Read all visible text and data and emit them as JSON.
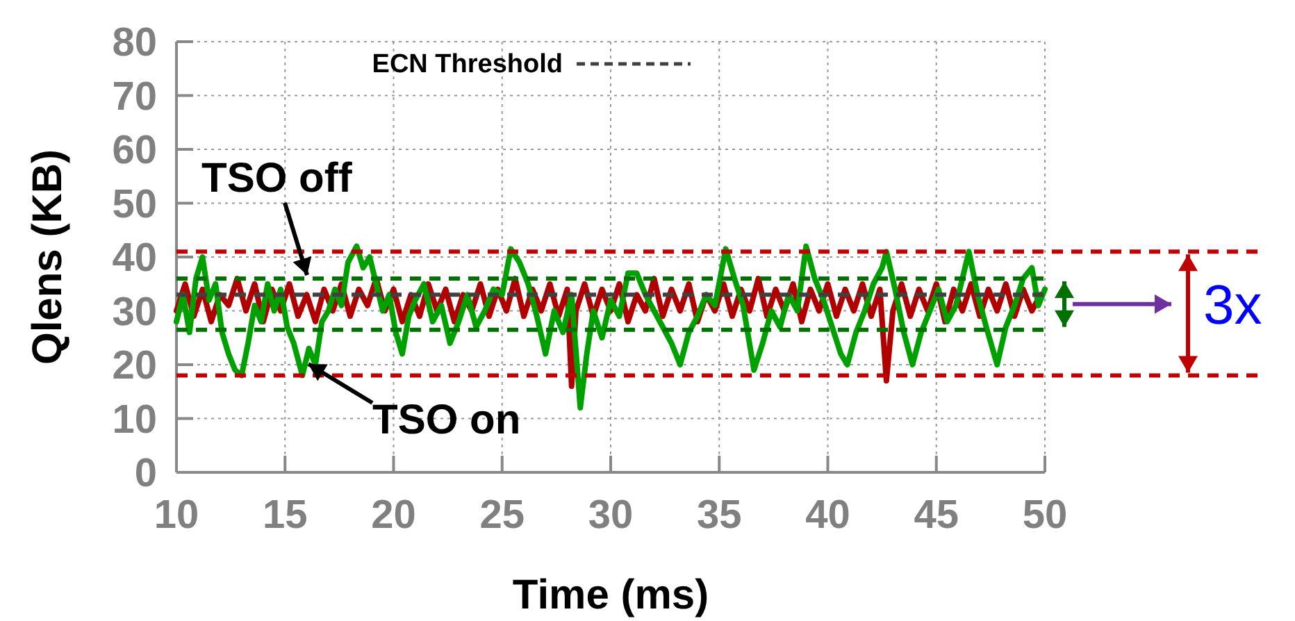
{
  "chart_data": {
    "type": "line",
    "xlabel": "Time (ms)",
    "ylabel": "Qlens (KB)",
    "xlim": [
      10,
      50
    ],
    "xticks": [
      10,
      15,
      20,
      25,
      30,
      35,
      40,
      45,
      50
    ],
    "ylim": [
      0,
      80
    ],
    "yticks": [
      0,
      10,
      20,
      30,
      40,
      50,
      60,
      70,
      80
    ],
    "grid": true,
    "legend": "top",
    "line_style": "solid",
    "marker": "none",
    "series": [
      {
        "name": "TSO off",
        "color": "#b00000",
        "x": [
          10,
          10.4,
          10.8,
          11.2,
          11.6,
          12,
          12.4,
          12.8,
          13.2,
          13.6,
          14,
          14.4,
          14.8,
          15.2,
          15.6,
          16,
          16.4,
          16.8,
          17.2,
          17.6,
          18,
          18.4,
          18.8,
          19.2,
          19.6,
          20,
          20.4,
          20.8,
          21.2,
          21.6,
          22,
          22.4,
          22.8,
          23.2,
          23.6,
          24,
          24.4,
          24.8,
          25.2,
          25.6,
          26,
          26.4,
          26.8,
          27.2,
          27.6,
          28,
          28.2,
          28.4,
          28.8,
          29.2,
          29.6,
          30,
          30.4,
          30.8,
          31.2,
          31.6,
          32,
          32.4,
          32.8,
          33.2,
          33.6,
          34,
          34.4,
          34.8,
          35.2,
          35.6,
          36,
          36.4,
          36.8,
          37.2,
          37.6,
          38,
          38.4,
          38.8,
          39.2,
          39.6,
          40,
          40.4,
          40.8,
          41.2,
          41.6,
          42,
          42.4,
          42.7,
          43,
          43.4,
          43.8,
          44.2,
          44.6,
          45,
          45.4,
          45.8,
          46.2,
          46.6,
          47,
          47.4,
          47.8,
          48.2,
          48.6,
          49,
          49.4,
          49.8
        ],
        "values": [
          30,
          35,
          29,
          34,
          28,
          33,
          31,
          36,
          30,
          35,
          28,
          34,
          30,
          35,
          29,
          33,
          28,
          34,
          30,
          35,
          29,
          34,
          31,
          36,
          30,
          34,
          28,
          33,
          29,
          35,
          30,
          34,
          28,
          33,
          30,
          35,
          29,
          34,
          30,
          36,
          29,
          34,
          30,
          35,
          29,
          34,
          16,
          30,
          35,
          29,
          34,
          30,
          35,
          28,
          33,
          30,
          36,
          29,
          34,
          30,
          35,
          28,
          33,
          30,
          35,
          29,
          34,
          30,
          36,
          29,
          34,
          30,
          35,
          28,
          34,
          30,
          35,
          29,
          34,
          30,
          35,
          29,
          34,
          17,
          30,
          35,
          29,
          34,
          30,
          35,
          28,
          34,
          30,
          35,
          29,
          34,
          30,
          35,
          29,
          34,
          30,
          33
        ]
      },
      {
        "name": "TSO on",
        "color": "#00a000",
        "x": [
          10,
          10.3,
          10.6,
          10.9,
          11.2,
          11.5,
          11.8,
          12.1,
          12.4,
          12.7,
          13,
          13.3,
          13.6,
          13.9,
          14.2,
          14.5,
          14.8,
          15.1,
          15.4,
          15.8,
          16.1,
          16.4,
          16.7,
          17,
          17.3,
          17.6,
          17.9,
          18.3,
          18.6,
          18.9,
          19.2,
          19.5,
          19.8,
          20.1,
          20.4,
          20.7,
          21,
          21.4,
          21.8,
          22.2,
          22.6,
          23,
          23.4,
          23.8,
          24.2,
          24.6,
          25,
          25.4,
          25.8,
          26.2,
          26.6,
          27,
          27.4,
          27.8,
          28.2,
          28.6,
          28.9,
          29.2,
          29.6,
          30,
          30.4,
          30.8,
          31.2,
          31.6,
          32,
          32.4,
          32.8,
          33.2,
          33.6,
          34,
          34.4,
          34.8,
          35.3,
          35.7,
          36.1,
          36.6,
          37,
          37.4,
          37.8,
          38.2,
          38.6,
          39,
          39.4,
          39.8,
          40.2,
          40.6,
          40.9,
          41.3,
          41.7,
          42.1,
          42.5,
          42.7,
          43.1,
          43.5,
          43.9,
          44.3,
          44.7,
          45.1,
          45.5,
          45.9,
          46.2,
          46.5,
          46.9,
          47.3,
          47.8,
          48.2,
          48.6,
          49,
          49.4,
          49.7,
          50
        ],
        "values": [
          28,
          33,
          26,
          36,
          40,
          32,
          35,
          26,
          22,
          19,
          18,
          24,
          31,
          28,
          35,
          30,
          34,
          27,
          24,
          18,
          23,
          20,
          28,
          30,
          34,
          31,
          39,
          42,
          38,
          40,
          35,
          30,
          33,
          26,
          22,
          29,
          32,
          35,
          28,
          31,
          24,
          28,
          33,
          27,
          30,
          34,
          33,
          41.5,
          39,
          35,
          29,
          22,
          30,
          26,
          33,
          12,
          22,
          30,
          25,
          32,
          29,
          37,
          37,
          33,
          30,
          27,
          24,
          20,
          26,
          29,
          33,
          31,
          41.5,
          36,
          31,
          19,
          24,
          30,
          27,
          33,
          30,
          42,
          36,
          32,
          27,
          22,
          20,
          26,
          30,
          35,
          38,
          41,
          34,
          26,
          20,
          26,
          30,
          34,
          28,
          31,
          36,
          41,
          33,
          27,
          20,
          27,
          31,
          36,
          38,
          31,
          34
        ]
      }
    ],
    "ref_lines": [
      {
        "axis": "y",
        "value": 33,
        "label": "ECN Threshold",
        "color": "#404040",
        "line_style": "dashed"
      },
      {
        "axis": "y",
        "value": 41,
        "color": "#c00000",
        "line_style": "dashed"
      },
      {
        "axis": "y",
        "value": 18,
        "color": "#c00000",
        "line_style": "dashed"
      },
      {
        "axis": "y",
        "value": 36,
        "color": "#007000",
        "line_style": "dashed"
      },
      {
        "axis": "y",
        "value": 26.5,
        "color": "#007000",
        "line_style": "dashed"
      }
    ],
    "annotations": [
      "3x"
    ]
  }
}
